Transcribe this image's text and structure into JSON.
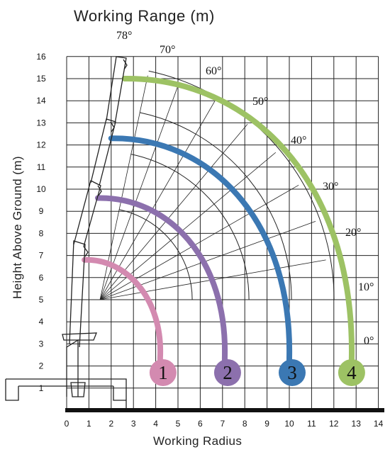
{
  "title": "Working Range (m)",
  "x_axis_label": "Working Radius",
  "y_axis_label": "Height Above Ground (m)",
  "x_ticks": [
    "0",
    "1",
    "2",
    "3",
    "4",
    "5",
    "6",
    "7",
    "8",
    "9",
    "10",
    "11",
    "12",
    "13",
    "14"
  ],
  "y_ticks": [
    "1",
    "2",
    "3",
    "4",
    "5",
    "6",
    "7",
    "8",
    "9",
    "10",
    "11",
    "12",
    "13",
    "14",
    "15",
    "16"
  ],
  "angle_labels": [
    "78°",
    "70°",
    "60°",
    "50°",
    "40°",
    "30°",
    "20°",
    "10°",
    "0°"
  ],
  "boom_stages": [
    {
      "label": "1",
      "color": "#d38ab0",
      "tip_x": 0.8,
      "tip_y": 6.8,
      "end_x": 4.2,
      "end_y": 1.8
    },
    {
      "label": "2",
      "color": "#8c70ad",
      "tip_x": 1.4,
      "tip_y": 9.6,
      "end_x": 7.1,
      "end_y": 1.8
    },
    {
      "label": "3",
      "color": "#3b78b3",
      "tip_x": 2.0,
      "tip_y": 12.3,
      "end_x": 10.0,
      "end_y": 1.8
    },
    {
      "label": "4",
      "color": "#9dc264",
      "tip_x": 2.6,
      "tip_y": 15.0,
      "end_x": 12.8,
      "end_y": 1.8
    }
  ]
}
